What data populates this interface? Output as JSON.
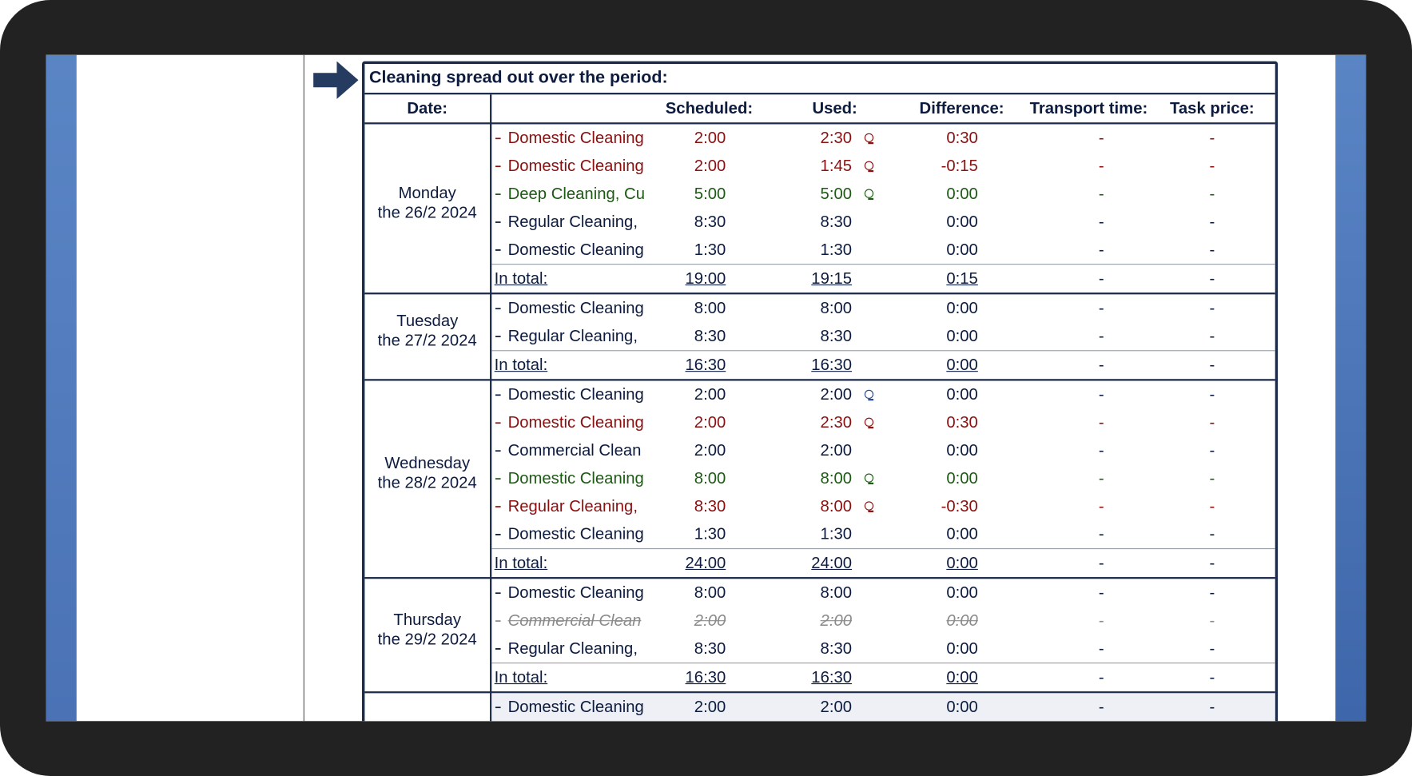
{
  "title": "Cleaning spread out over the period:",
  "headers": {
    "date": "Date:",
    "scheduled": "Scheduled:",
    "used": "Used:",
    "difference": "Difference:",
    "transport": "Transport time:",
    "price": "Task price:"
  },
  "colors": {
    "normal": "#0d1b3e",
    "over": "#8b1010",
    "match": "#1d5a14",
    "struck": "#8a8a8a",
    "icon_blue": "#2c4a8a"
  },
  "days": [
    {
      "weekday": "Monday",
      "date": "the 26/2 2024",
      "tasks": [
        {
          "name": "Domestic Cleaning",
          "scheduled": "2:00",
          "used": "2:30",
          "difference": "0:30",
          "transport": "-",
          "price": "-",
          "style": "over",
          "icon": "over"
        },
        {
          "name": "Domestic Cleaning",
          "scheduled": "2:00",
          "used": "1:45",
          "difference": "-0:15",
          "transport": "-",
          "price": "-",
          "style": "over",
          "icon": "over"
        },
        {
          "name": "Deep Cleaning, Cu",
          "scheduled": "5:00",
          "used": "5:00",
          "difference": "0:00",
          "transport": "-",
          "price": "-",
          "style": "match",
          "icon": "match"
        },
        {
          "name": "Regular Cleaning,",
          "scheduled": "8:30",
          "used": "8:30",
          "difference": "0:00",
          "transport": "-",
          "price": "-",
          "style": "normal"
        },
        {
          "name": "Domestic Cleaning",
          "scheduled": "1:30",
          "used": "1:30",
          "difference": "0:00",
          "transport": "-",
          "price": "-",
          "style": "normal"
        }
      ],
      "total": {
        "label": "In total:",
        "scheduled": "19:00",
        "used": "19:15",
        "difference": "0:15",
        "transport": "-",
        "price": "-"
      }
    },
    {
      "weekday": "Tuesday",
      "date": "the 27/2 2024",
      "tasks": [
        {
          "name": "Domestic Cleaning",
          "scheduled": "8:00",
          "used": "8:00",
          "difference": "0:00",
          "transport": "-",
          "price": "-",
          "style": "normal"
        },
        {
          "name": "Regular Cleaning,",
          "scheduled": "8:30",
          "used": "8:30",
          "difference": "0:00",
          "transport": "-",
          "price": "-",
          "style": "normal"
        }
      ],
      "total": {
        "label": "In total:",
        "scheduled": "16:30",
        "used": "16:30",
        "difference": "0:00",
        "transport": "-",
        "price": "-"
      }
    },
    {
      "weekday": "Wednesday",
      "date": "the 28/2 2024",
      "tasks": [
        {
          "name": "Domestic Cleaning",
          "scheduled": "2:00",
          "used": "2:00",
          "difference": "0:00",
          "transport": "-",
          "price": "-",
          "style": "normal",
          "icon": "icon_blue"
        },
        {
          "name": "Domestic Cleaning",
          "scheduled": "2:00",
          "used": "2:30",
          "difference": "0:30",
          "transport": "-",
          "price": "-",
          "style": "over",
          "icon": "over"
        },
        {
          "name": "Commercial Clean",
          "scheduled": "2:00",
          "used": "2:00",
          "difference": "0:00",
          "transport": "-",
          "price": "-",
          "style": "normal"
        },
        {
          "name": "Domestic Cleaning",
          "scheduled": "8:00",
          "used": "8:00",
          "difference": "0:00",
          "transport": "-",
          "price": "-",
          "style": "match",
          "icon": "match"
        },
        {
          "name": "Regular Cleaning,",
          "scheduled": "8:30",
          "used": "8:00",
          "difference": "-0:30",
          "transport": "-",
          "price": "-",
          "style": "over",
          "icon": "over"
        },
        {
          "name": "Domestic Cleaning",
          "scheduled": "1:30",
          "used": "1:30",
          "difference": "0:00",
          "transport": "-",
          "price": "-",
          "style": "normal"
        }
      ],
      "total": {
        "label": "In total:",
        "scheduled": "24:00",
        "used": "24:00",
        "difference": "0:00",
        "transport": "-",
        "price": "-"
      }
    },
    {
      "weekday": "Thursday",
      "date": "the 29/2 2024",
      "tasks": [
        {
          "name": "Domestic Cleaning",
          "scheduled": "8:00",
          "used": "8:00",
          "difference": "0:00",
          "transport": "-",
          "price": "-",
          "style": "normal"
        },
        {
          "name": "Commercial Clean",
          "scheduled": "2:00",
          "used": "2:00",
          "difference": "0:00",
          "transport": "-",
          "price": "-",
          "style": "struck"
        },
        {
          "name": "Regular Cleaning,",
          "scheduled": "8:30",
          "used": "8:30",
          "difference": "0:00",
          "transport": "-",
          "price": "-",
          "style": "normal"
        }
      ],
      "total": {
        "label": "In total:",
        "scheduled": "16:30",
        "used": "16:30",
        "difference": "0:00",
        "transport": "-",
        "price": "-"
      }
    },
    {
      "tasks": [
        {
          "name": "Domestic Cleaning",
          "scheduled": "2:00",
          "used": "2:00",
          "difference": "0:00",
          "transport": "-",
          "price": "-",
          "style": "normal"
        }
      ]
    }
  ]
}
